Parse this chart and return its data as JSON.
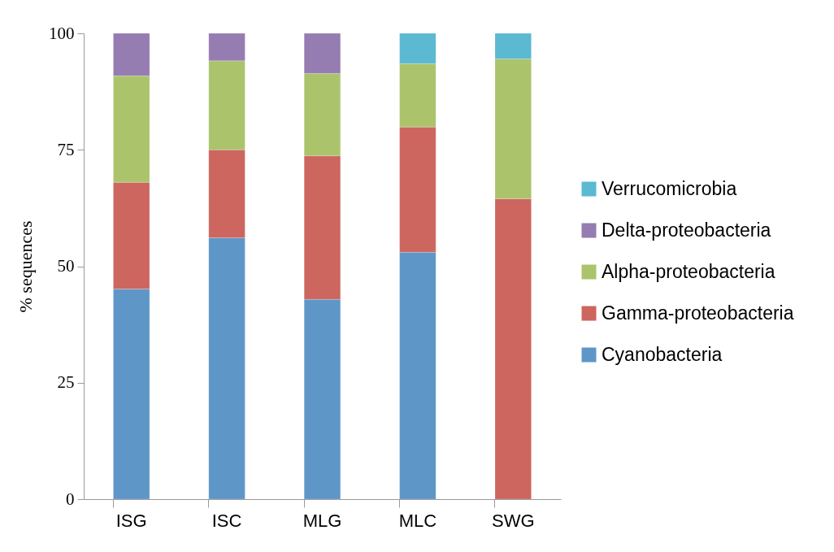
{
  "chart_data": {
    "type": "bar",
    "stacked": true,
    "ylabel": "% sequences",
    "categories": [
      "ISG",
      "ISC",
      "MLG",
      "MLC",
      "SWG"
    ],
    "ylim": [
      0,
      100
    ],
    "yticks": [
      0,
      25,
      50,
      75,
      100
    ],
    "grid": false,
    "legend": "right",
    "series": [
      {
        "name": "Cyanobacteria",
        "color": "#5f96c8",
        "values": [
          45.1,
          56.1,
          42.9,
          53.0,
          null
        ]
      },
      {
        "name": "Gamma-proteobacteria",
        "color": "#cc665f",
        "values": [
          22.9,
          18.9,
          30.8,
          26.9,
          64.5
        ]
      },
      {
        "name": "Alpha-proteobacteria",
        "color": "#abc46c",
        "values": [
          22.9,
          19.1,
          17.7,
          13.6,
          30.0
        ]
      },
      {
        "name": "Delta-proteobacteria",
        "color": "#957cb1",
        "values": [
          9.1,
          5.9,
          8.6,
          null,
          null
        ]
      },
      {
        "name": "Verrucomicrobia",
        "color": "#5bb9d2",
        "values": [
          null,
          null,
          null,
          6.5,
          5.5
        ]
      }
    ]
  }
}
